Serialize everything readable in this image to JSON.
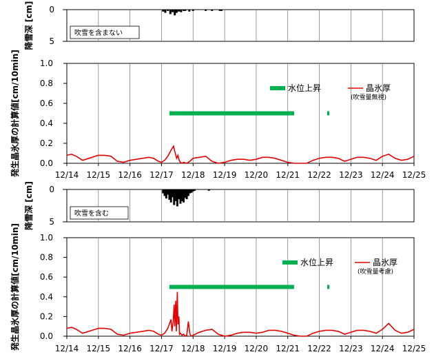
{
  "chart_data": [
    {
      "type": "bar",
      "panel": "snow-depth-top",
      "ylabel": "降雪深 [cm]",
      "ylim": [
        0,
        5
      ],
      "yticks": [
        "0",
        "5"
      ],
      "y_inverted": true,
      "note": "吹雪を含まない",
      "x_range": [
        0,
        11
      ],
      "bars": [
        [
          3.05,
          0.3
        ],
        [
          3.12,
          0.5
        ],
        [
          3.2,
          0.2
        ],
        [
          3.28,
          0.7
        ],
        [
          3.35,
          0.4
        ],
        [
          3.42,
          0.9
        ],
        [
          3.48,
          0.5
        ],
        [
          3.55,
          0.3
        ],
        [
          3.62,
          0.4
        ],
        [
          3.7,
          0.2
        ],
        [
          3.75,
          0.2
        ],
        [
          3.88,
          0.3
        ],
        [
          4.0,
          0.2
        ],
        [
          4.4,
          0.2
        ],
        [
          4.6,
          0.2
        ],
        [
          4.85,
          0.2
        ],
        [
          4.9,
          0.2
        ]
      ]
    },
    {
      "type": "line",
      "panel": "ice-thickness-top",
      "ylabel": "発生晶氷厚の計算値[cm/10min]",
      "ylim": [
        0,
        1.0
      ],
      "yticks": [
        "0.0",
        "0.2",
        "0.4",
        "0.6",
        "0.8",
        "1.0"
      ],
      "x_range": [
        0,
        11
      ],
      "categories": [
        "12/14",
        "12/15",
        "12/16",
        "12/17",
        "12/18",
        "12/19",
        "12/20",
        "12/21",
        "12/22",
        "12/23",
        "12/24",
        "12/25"
      ],
      "legend": {
        "water_level": "水位上昇",
        "ice": "晶氷厚",
        "ice_sub": "(吹雪量無視)"
      },
      "water_level_segments": [
        [
          3.25,
          7.2
        ],
        [
          8.25,
          8.32
        ]
      ],
      "water_level_value": 0.5,
      "ice_series": {
        "x": [
          0,
          0.15,
          0.3,
          0.5,
          0.7,
          0.9,
          1.0,
          1.2,
          1.4,
          1.6,
          1.8,
          2.0,
          2.2,
          2.4,
          2.6,
          2.75,
          2.9,
          3.0,
          3.1,
          3.2,
          3.3,
          3.38,
          3.42,
          3.48,
          3.52,
          3.56,
          3.6,
          3.65,
          3.7,
          3.8,
          3.9,
          4.0,
          4.2,
          4.4,
          4.6,
          4.8,
          5.0,
          5.2,
          5.4,
          5.6,
          5.8,
          6.0,
          6.2,
          6.4,
          6.6,
          6.8,
          7.0,
          7.2,
          7.4,
          7.6,
          7.8,
          8.0,
          8.2,
          8.4,
          8.6,
          8.8,
          9.0,
          9.2,
          9.4,
          9.6,
          9.8,
          10.0,
          10.2,
          10.4,
          10.6,
          10.8,
          11.0
        ],
        "y": [
          0.08,
          0.09,
          0.07,
          0.03,
          0.05,
          0.07,
          0.08,
          0.08,
          0.07,
          0.02,
          0.01,
          0.03,
          0.04,
          0.05,
          0.06,
          0.05,
          0.02,
          0.01,
          0.03,
          0.07,
          0.13,
          0.17,
          0.12,
          0.05,
          0.08,
          0.03,
          0.01,
          0.0,
          0.01,
          0.0,
          0.02,
          0.05,
          0.06,
          0.07,
          0.02,
          0.0,
          0.01,
          0.03,
          0.04,
          0.04,
          0.03,
          0.04,
          0.06,
          0.06,
          0.05,
          0.03,
          0.01,
          0.0,
          0.0,
          0.0,
          0.03,
          0.05,
          0.06,
          0.06,
          0.05,
          0.02,
          0.04,
          0.06,
          0.06,
          0.05,
          0.03,
          0.07,
          0.09,
          0.05,
          0.03,
          0.04,
          0.07
        ]
      }
    },
    {
      "type": "bar",
      "panel": "snow-depth-bottom",
      "ylabel": "降雪深 [cm]",
      "ylim": [
        0,
        5
      ],
      "yticks": [
        "0",
        "5"
      ],
      "y_inverted": true,
      "note": "吹雪を含む",
      "x_range": [
        0,
        11
      ],
      "bars": [
        [
          3.05,
          0.6
        ],
        [
          3.1,
          1.0
        ],
        [
          3.15,
          1.4
        ],
        [
          3.2,
          0.8
        ],
        [
          3.25,
          1.6
        ],
        [
          3.3,
          2.0
        ],
        [
          3.35,
          1.2
        ],
        [
          3.4,
          2.4
        ],
        [
          3.45,
          1.8
        ],
        [
          3.5,
          2.6
        ],
        [
          3.55,
          1.5
        ],
        [
          3.6,
          2.2
        ],
        [
          3.65,
          1.8
        ],
        [
          3.7,
          2.0
        ],
        [
          3.75,
          1.3
        ],
        [
          3.8,
          1.5
        ],
        [
          3.85,
          1.0
        ],
        [
          3.9,
          0.6
        ],
        [
          3.95,
          0.5
        ],
        [
          4.0,
          0.3
        ],
        [
          4.05,
          0.2
        ],
        [
          4.5,
          0.2
        ]
      ]
    },
    {
      "type": "line",
      "panel": "ice-thickness-bottom",
      "ylabel": "発生晶氷厚の計算値[cm/10min]",
      "ylim": [
        0,
        1.0
      ],
      "yticks": [
        "0.0",
        "0.2",
        "0.4",
        "0.6",
        "0.8",
        "1.0"
      ],
      "x_range": [
        0,
        11
      ],
      "categories": [
        "12/14",
        "12/15",
        "12/16",
        "12/17",
        "12/18",
        "12/19",
        "12/20",
        "12/21",
        "12/22",
        "12/23",
        "12/24",
        "12/25"
      ],
      "legend": {
        "water_level": "水位上昇",
        "ice": "晶氷厚",
        "ice_sub": "(吹雪量考慮)"
      },
      "water_level_segments": [
        [
          3.25,
          7.2
        ],
        [
          8.25,
          8.32
        ]
      ],
      "water_level_value": 0.5,
      "ice_series": {
        "x": [
          0,
          0.15,
          0.3,
          0.5,
          0.7,
          0.9,
          1.0,
          1.2,
          1.4,
          1.6,
          1.8,
          2.0,
          2.2,
          2.4,
          2.6,
          2.75,
          2.9,
          3.0,
          3.1,
          3.2,
          3.3,
          3.33,
          3.37,
          3.4,
          3.42,
          3.45,
          3.47,
          3.5,
          3.52,
          3.55,
          3.57,
          3.6,
          3.65,
          3.7,
          3.75,
          3.8,
          3.85,
          3.9,
          3.95,
          4.0,
          4.2,
          4.4,
          4.6,
          4.8,
          5.0,
          5.2,
          5.4,
          5.6,
          5.8,
          6.0,
          6.2,
          6.4,
          6.6,
          6.8,
          7.0,
          7.2,
          7.4,
          7.6,
          7.8,
          8.0,
          8.2,
          8.4,
          8.6,
          8.8,
          9.0,
          9.2,
          9.4,
          9.6,
          9.8,
          10.0,
          10.2,
          10.4,
          10.6,
          10.8,
          11.0
        ],
        "y": [
          0.08,
          0.09,
          0.07,
          0.03,
          0.05,
          0.07,
          0.08,
          0.08,
          0.07,
          0.02,
          0.01,
          0.03,
          0.04,
          0.05,
          0.06,
          0.05,
          0.02,
          0.01,
          0.03,
          0.08,
          0.17,
          0.05,
          0.15,
          0.32,
          0.1,
          0.36,
          0.05,
          0.45,
          0.12,
          0.2,
          0.02,
          0.03,
          0.01,
          0.02,
          0.0,
          0.01,
          0.15,
          0.02,
          0.0,
          0.01,
          0.04,
          0.06,
          0.07,
          0.02,
          0.0,
          0.01,
          0.03,
          0.04,
          0.04,
          0.03,
          0.04,
          0.06,
          0.06,
          0.05,
          0.03,
          0.01,
          0.0,
          0.0,
          0.03,
          0.05,
          0.06,
          0.06,
          0.05,
          0.02,
          0.04,
          0.06,
          0.06,
          0.05,
          0.03,
          0.07,
          0.13,
          0.06,
          0.03,
          0.04,
          0.07
        ]
      }
    }
  ],
  "colors": {
    "ice_line": "#e60000",
    "water_level": "#00b050",
    "snow_bar": "#000000",
    "grid": "#808080"
  }
}
